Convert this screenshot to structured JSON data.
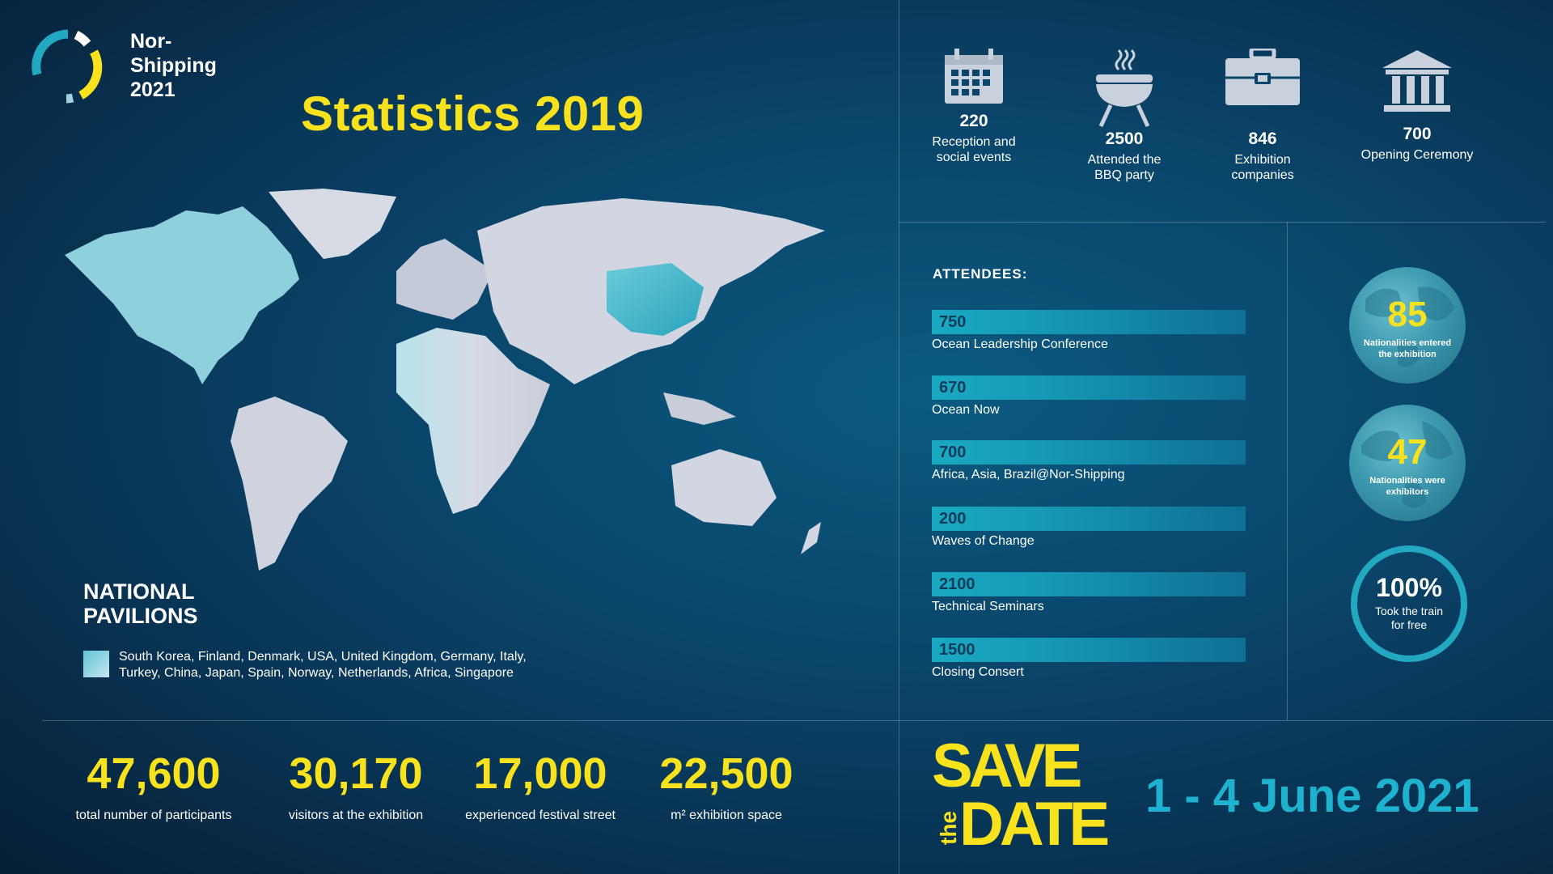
{
  "logo": {
    "line1": "Nor-",
    "line2": "Shipping",
    "line3": "2021"
  },
  "title": "Statistics 2019",
  "events": [
    {
      "icon": "calendar-icon",
      "value": "220",
      "label_line1": "Reception and",
      "label_line2": "social events"
    },
    {
      "icon": "bbq-grill-icon",
      "value": "2500",
      "label_line1": "Attended the",
      "label_line2": "BBQ party"
    },
    {
      "icon": "briefcase-icon",
      "value": "846",
      "label_line1": "Exhibition",
      "label_line2": "companies"
    },
    {
      "icon": "institution-icon",
      "value": "700",
      "label_line1": "Opening Ceremony",
      "label_line2": ""
    }
  ],
  "attendees": {
    "heading": "ATTENDEES:",
    "items": [
      {
        "value": "750",
        "label": "Ocean Leadership Conference"
      },
      {
        "value": "670",
        "label": "Ocean Now"
      },
      {
        "value": "700",
        "label": "Africa, Asia, Brazil@Nor-Shipping"
      },
      {
        "value": "200",
        "label": "Waves of Change"
      },
      {
        "value": "2100",
        "label": "Technical Seminars"
      },
      {
        "value": "1500",
        "label": "Closing Consert"
      }
    ]
  },
  "globes": [
    {
      "value": "85",
      "label_line1": "Nationalities entered",
      "label_line2": "the exhibition"
    },
    {
      "value": "47",
      "label_line1": "Nationalities were",
      "label_line2": "exhibitors"
    }
  ],
  "train": {
    "value": "100%",
    "label_line1": "Took the train",
    "label_line2": "for free"
  },
  "pavilions": {
    "title_line1": "NATIONAL",
    "title_line2": "PAVILIONS",
    "line1": "South Korea, Finland, Denmark, USA, United Kingdom, Germany, Italy,",
    "line2": "Turkey, China, Japan, Spain, Norway, Netherlands, Africa, Singapore"
  },
  "bottom_stats": [
    {
      "value": "47,600",
      "label": "total number of participants"
    },
    {
      "value": "30,170",
      "label": "visitors at the exhibition"
    },
    {
      "value": "17,000",
      "label": "experienced festival street"
    },
    {
      "value": "22,500",
      "label": "m² exhibition space"
    }
  ],
  "save_the_date": {
    "save": "SAVE",
    "the": "the",
    "date": "DATE"
  },
  "event_dates": "1 - 4 June 2021",
  "colors": {
    "accent_yellow": "#f7e21d",
    "accent_cyan": "#1fb2d0",
    "background": "#0a456a"
  }
}
